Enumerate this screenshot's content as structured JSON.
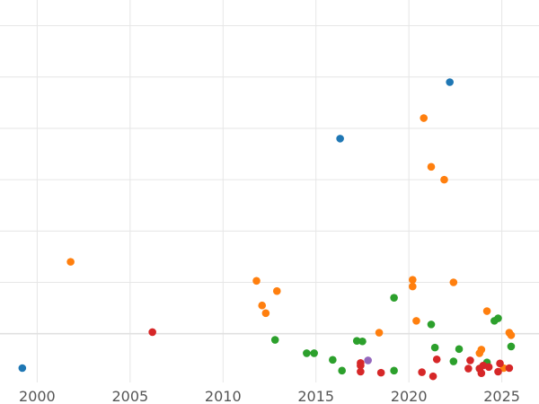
{
  "chart_data": {
    "type": "scatter",
    "title": "",
    "xlabel": "",
    "ylabel": "",
    "xlim": [
      1998.0,
      2027.0
    ],
    "ylim": [
      -0.95,
      6.5
    ],
    "x_ticks": [
      2000,
      2005,
      2010,
      2015,
      2020,
      2025
    ],
    "x_tick_labels": [
      "2000",
      "2005",
      "2010",
      "2015",
      "2020",
      "2025"
    ],
    "y_gridlines": [
      0,
      1,
      2,
      3,
      4,
      5,
      6
    ],
    "grid": true,
    "series": [
      {
        "name": "blue",
        "color": "#1f77b4",
        "points": [
          [
            1999.2,
            -0.67
          ],
          [
            2016.3,
            3.8
          ],
          [
            2022.2,
            4.9
          ]
        ]
      },
      {
        "name": "orange",
        "color": "#ff7f0e",
        "points": [
          [
            2001.8,
            1.4
          ],
          [
            2011.8,
            1.03
          ],
          [
            2012.1,
            0.55
          ],
          [
            2012.3,
            0.4
          ],
          [
            2012.9,
            0.83
          ],
          [
            2018.4,
            0.02
          ],
          [
            2020.2,
            1.05
          ],
          [
            2020.2,
            0.92
          ],
          [
            2020.4,
            0.25
          ],
          [
            2020.8,
            4.2
          ],
          [
            2021.2,
            3.25
          ],
          [
            2021.9,
            3.0
          ],
          [
            2022.4,
            1.0
          ],
          [
            2023.8,
            -0.38
          ],
          [
            2023.9,
            -0.31
          ],
          [
            2024.2,
            0.44
          ],
          [
            2025.1,
            -0.67
          ],
          [
            2025.4,
            0.02
          ],
          [
            2025.5,
            -0.03
          ]
        ]
      },
      {
        "name": "green",
        "color": "#2ca02c",
        "points": [
          [
            2012.8,
            -0.12
          ],
          [
            2014.5,
            -0.38
          ],
          [
            2014.9,
            -0.38
          ],
          [
            2015.9,
            -0.51
          ],
          [
            2016.4,
            -0.72
          ],
          [
            2017.2,
            -0.14
          ],
          [
            2017.5,
            -0.15
          ],
          [
            2019.2,
            0.7
          ],
          [
            2019.2,
            -0.72
          ],
          [
            2021.2,
            0.18
          ],
          [
            2021.4,
            -0.27
          ],
          [
            2022.4,
            -0.54
          ],
          [
            2022.7,
            -0.3
          ],
          [
            2023.8,
            -0.68
          ],
          [
            2024.2,
            -0.56
          ],
          [
            2024.6,
            0.25
          ],
          [
            2024.8,
            0.3
          ],
          [
            2025.5,
            -0.25
          ]
        ]
      },
      {
        "name": "red",
        "color": "#d62728",
        "points": [
          [
            2006.2,
            0.03
          ],
          [
            2017.4,
            -0.57
          ],
          [
            2017.4,
            -0.62
          ],
          [
            2017.4,
            -0.74
          ],
          [
            2018.5,
            -0.76
          ],
          [
            2020.7,
            -0.75
          ],
          [
            2021.3,
            -0.83
          ],
          [
            2021.5,
            -0.5
          ],
          [
            2023.2,
            -0.68
          ],
          [
            2023.3,
            -0.52
          ],
          [
            2023.8,
            -0.68
          ],
          [
            2023.9,
            -0.77
          ],
          [
            2024.0,
            -0.62
          ],
          [
            2024.3,
            -0.65
          ],
          [
            2024.8,
            -0.74
          ],
          [
            2024.9,
            -0.58
          ],
          [
            2025.4,
            -0.67
          ]
        ]
      },
      {
        "name": "purple",
        "color": "#9467bd",
        "points": [
          [
            2017.8,
            -0.52
          ]
        ]
      }
    ]
  }
}
